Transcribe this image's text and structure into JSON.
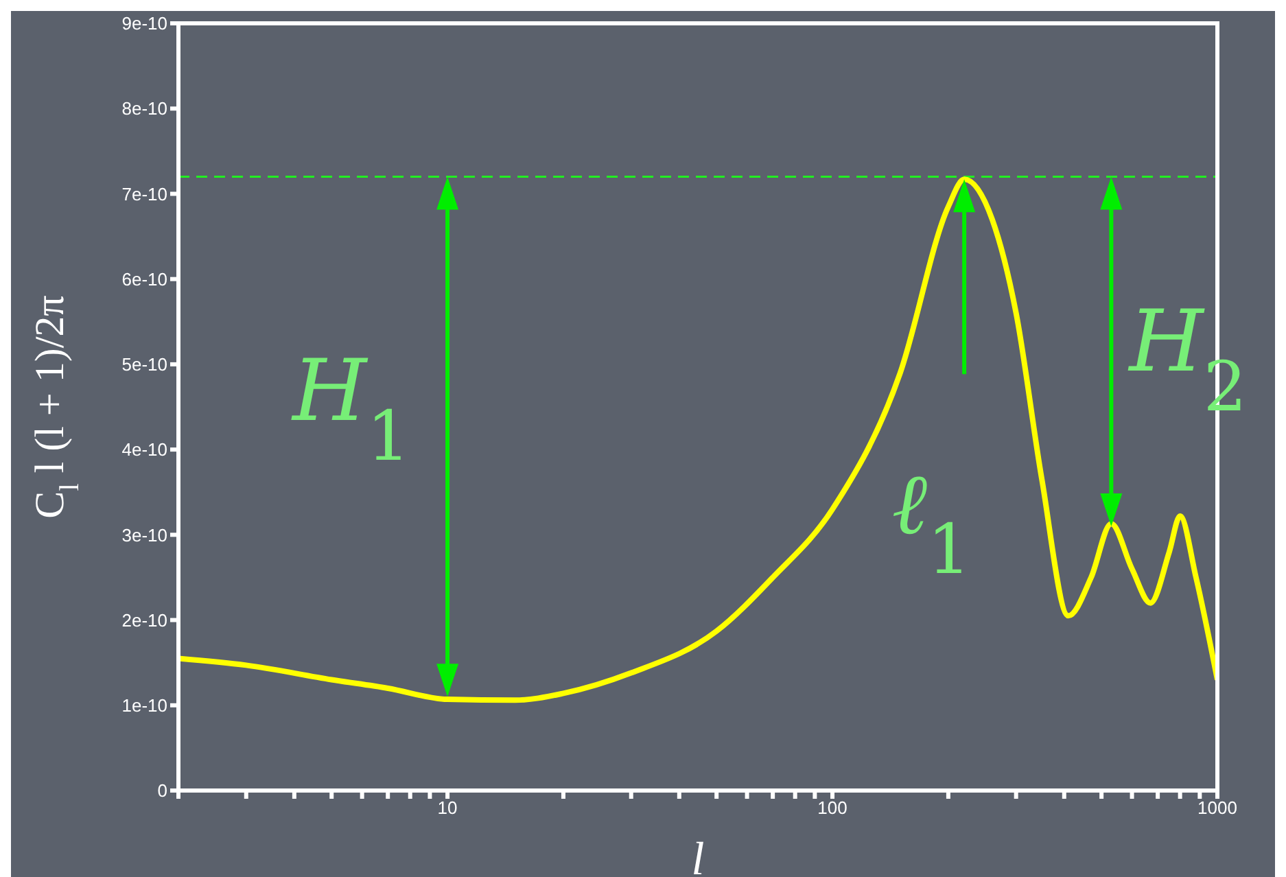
{
  "chart_data": {
    "type": "line",
    "xlabel": "l",
    "ylabel": "C$_{l}$ l (l + 1)/2π",
    "x": [
      2,
      3,
      5,
      7,
      10,
      15,
      20,
      30,
      50,
      70,
      100,
      150,
      200,
      220,
      260,
      300,
      350,
      410,
      470,
      530,
      600,
      670,
      750,
      800,
      880,
      1000
    ],
    "series": [
      {
        "color": "#ffff00",
        "values": [
          1.55e-10,
          1.47e-10,
          1.3e-10,
          1.2e-10,
          1.07e-10,
          1.06e-10,
          1.14e-10,
          1.38e-10,
          1.87e-10,
          2.5e-10,
          3.3e-10,
          4.9e-10,
          6.85e-10,
          7.17e-10,
          6.7e-10,
          5.6e-10,
          3.65e-10,
          2.05e-10,
          2.5e-10,
          3.13e-10,
          2.6e-10,
          2.2e-10,
          2.8e-10,
          3.22e-10,
          2.5e-10,
          1.3e-10
        ]
      }
    ],
    "log": "x",
    "xlim": [
      2,
      1000
    ],
    "xticks": [
      {
        "value": 2,
        "label": null
      },
      {
        "value": 3,
        "label": null
      },
      {
        "value": 4,
        "label": null
      },
      {
        "value": 5,
        "label": null
      },
      {
        "value": 6,
        "label": null
      },
      {
        "value": 7,
        "label": null
      },
      {
        "value": 8,
        "label": null
      },
      {
        "value": 9,
        "label": null
      },
      10,
      {
        "value": 20,
        "label": null
      },
      {
        "value": 30,
        "label": null
      },
      {
        "value": 40,
        "label": null
      },
      {
        "value": 50,
        "label": null
      },
      {
        "value": 60,
        "label": null
      },
      {
        "value": 70,
        "label": null
      },
      {
        "value": 80,
        "label": null
      },
      {
        "value": 90,
        "label": null
      },
      100,
      {
        "value": 200,
        "label": null
      },
      {
        "value": 300,
        "label": null
      },
      {
        "value": 400,
        "label": null
      },
      {
        "value": 500,
        "label": null
      },
      {
        "value": 600,
        "label": null
      },
      {
        "value": 700,
        "label": null
      },
      {
        "value": 800,
        "label": null
      },
      {
        "value": 900,
        "label": null
      },
      1000
    ],
    "ylim": [
      0,
      9e-10
    ],
    "yticks": [
      0,
      1e-10,
      2e-10,
      3e-10,
      4e-10,
      5e-10,
      6e-10,
      7e-10,
      8e-10,
      9e-10
    ],
    "ref_lines": [
      {
        "axis": "y",
        "value": 7.2e-10,
        "color": "#22ee22",
        "line_style": "dashed"
      }
    ],
    "annotations": [
      {
        "text": "H$_{1}$",
        "x": 10,
        "y": 1.1e-10
      },
      "ℓ$_{1}$",
      {
        "text": "H$_{2}$",
        "x": 530,
        "y": 3.1e-10
      }
    ],
    "marker": "none",
    "line_style": "solid"
  }
}
